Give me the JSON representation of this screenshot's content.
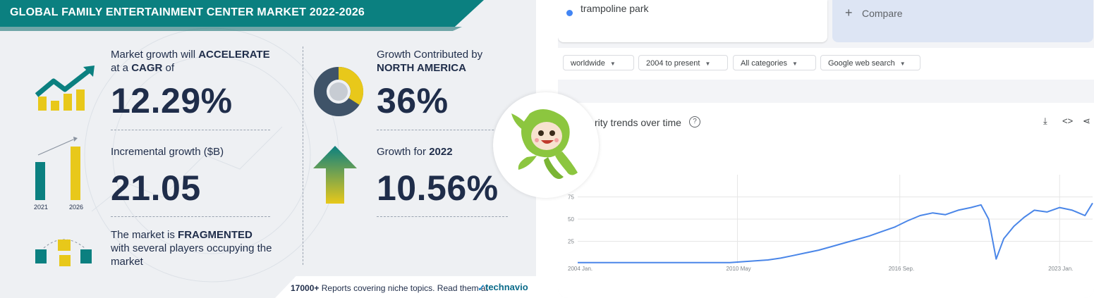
{
  "infographic": {
    "title": "GLOBAL FAMILY ENTERTAINMENT CENTER MARKET 2022-2026",
    "cagr": {
      "line1_pre": "Market growth will ",
      "line1_bold": "ACCELERATE",
      "line2_pre": "at a ",
      "line2_bold": "CAGR",
      "line2_post": " of",
      "value": "12.29%"
    },
    "incremental": {
      "label": "Incremental growth ($B)",
      "value": "21.05",
      "year_start": "2021",
      "year_end": "2026"
    },
    "fragmented": {
      "line1_pre": "The market is ",
      "line1_bold": "FRAGMENTED",
      "line2": "with several players occupying the",
      "line3": "market"
    },
    "region": {
      "label": "Growth Contributed by",
      "bold": "NORTH AMERICA",
      "value": "36%"
    },
    "year_growth": {
      "label_pre": "Growth for ",
      "bold": "2022",
      "value": "10.56%"
    },
    "footer": {
      "bold": "17000+",
      "text": " Reports covering niche topics. Read them at",
      "brand": "technavio"
    },
    "colors": {
      "teal": "#0b8080",
      "navy": "#1f2d4a",
      "yellow": "#e8c81a"
    }
  },
  "trends": {
    "search_term": "trampoline park",
    "compare_label": "Compare",
    "filters": [
      "worldwide",
      "2004 to present",
      "All categories",
      "Google web search"
    ],
    "chart_title": "rity trends over time",
    "icons": [
      "download-icon",
      "embed-icon",
      "share-icon",
      "help-icon"
    ],
    "chart_data": {
      "type": "line",
      "title": "rity trends over time",
      "xlabel": "",
      "ylabel": "",
      "y_ticks": [
        "25",
        "50",
        "75"
      ],
      "ylim": [
        0,
        100
      ],
      "x_ticks": [
        "2004 Jan.",
        "2010 May",
        "2016 Sep.",
        "2023 Jan."
      ],
      "x": [
        2004,
        2005,
        2006,
        2007,
        2008,
        2009,
        2010,
        2010.5,
        2011,
        2011.5,
        2012,
        2012.5,
        2013,
        2013.5,
        2014,
        2014.5,
        2015,
        2015.5,
        2016,
        2016.5,
        2017,
        2017.5,
        2018,
        2018.5,
        2019,
        2019.5,
        2019.9,
        2020.2,
        2020.5,
        2020.8,
        2021.2,
        2021.6,
        2022,
        2022.5,
        2023,
        2023.5,
        2024,
        2024.3
      ],
      "series": [
        {
          "values": [
            1,
            1,
            1,
            1,
            1,
            1,
            1,
            2,
            3,
            4,
            6,
            9,
            12,
            15,
            19,
            23,
            27,
            31,
            36,
            41,
            48,
            54,
            57,
            55,
            60,
            63,
            66,
            50,
            5,
            28,
            42,
            52,
            60,
            58,
            63,
            60,
            54,
            68
          ]
        }
      ],
      "line_color": "#4a86e8",
      "grid": true
    }
  }
}
